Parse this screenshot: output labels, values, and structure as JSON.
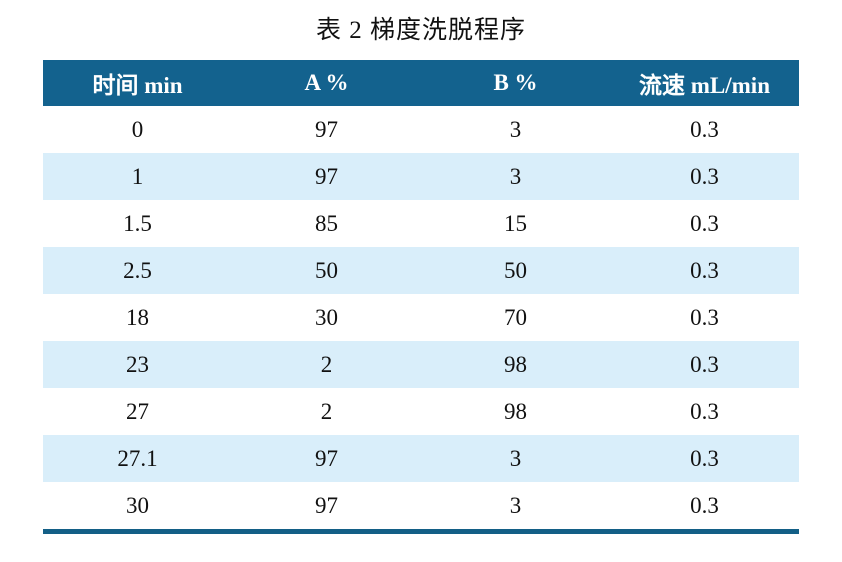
{
  "title": "表 2  梯度洗脱程序",
  "table": {
    "headers": [
      "时间  min",
      "A %",
      "B %",
      "流速  mL/min"
    ],
    "rows": [
      [
        "0",
        "97",
        "3",
        "0.3"
      ],
      [
        "1",
        "97",
        "3",
        "0.3"
      ],
      [
        "1.5",
        "85",
        "15",
        "0.3"
      ],
      [
        "2.5",
        "50",
        "50",
        "0.3"
      ],
      [
        "18",
        "30",
        "70",
        "0.3"
      ],
      [
        "23",
        "2",
        "98",
        "0.3"
      ],
      [
        "27",
        "2",
        "98",
        "0.3"
      ],
      [
        "27.1",
        "97",
        "3",
        "0.3"
      ],
      [
        "30",
        "97",
        "3",
        "0.3"
      ]
    ]
  },
  "colors": {
    "header_bg": "#13628e",
    "header_text": "#ffffff",
    "row_alt_bg": "#d9eefa",
    "bottom_rule": "#135f86"
  }
}
